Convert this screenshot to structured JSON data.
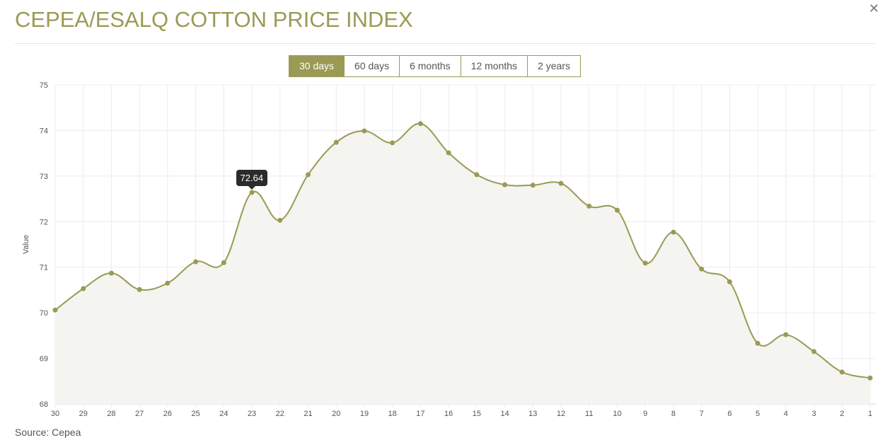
{
  "header": {
    "title": "CEPEA/ESALQ COTTON PRICE INDEX",
    "close_icon": "close-icon"
  },
  "range_buttons": [
    {
      "label": "30 days",
      "active": true
    },
    {
      "label": "60 days",
      "active": false
    },
    {
      "label": "6 months",
      "active": false
    },
    {
      "label": "12 months",
      "active": false
    },
    {
      "label": "2 years",
      "active": false
    }
  ],
  "footer": {
    "source": "Source: Cepea"
  },
  "colors": {
    "accent": "#9a9a55",
    "fill": "#f4f4f0"
  },
  "chart_data": {
    "type": "area",
    "ylabel": "Value",
    "xlabel": "",
    "ylim": [
      68,
      75
    ],
    "yticks": [
      "68",
      "69",
      "70",
      "71",
      "72",
      "73",
      "74",
      "75"
    ],
    "categories": [
      "30",
      "29",
      "28",
      "27",
      "26",
      "25",
      "24",
      "23",
      "22",
      "21",
      "20",
      "19",
      "18",
      "17",
      "16",
      "15",
      "14",
      "13",
      "12",
      "11",
      "10",
      "9",
      "8",
      "7",
      "6",
      "5",
      "4",
      "3",
      "2",
      "1"
    ],
    "values": [
      70.06,
      70.53,
      70.87,
      70.51,
      70.65,
      71.12,
      71.1,
      72.64,
      72.03,
      73.03,
      73.74,
      73.99,
      73.73,
      74.15,
      73.51,
      73.03,
      72.81,
      72.8,
      72.84,
      72.34,
      72.25,
      71.09,
      71.77,
      70.96,
      70.68,
      69.33,
      69.52,
      69.15,
      68.7,
      68.57
    ],
    "grid": true,
    "smooth": true,
    "tooltip": {
      "category": "23",
      "label": "72.64"
    }
  }
}
